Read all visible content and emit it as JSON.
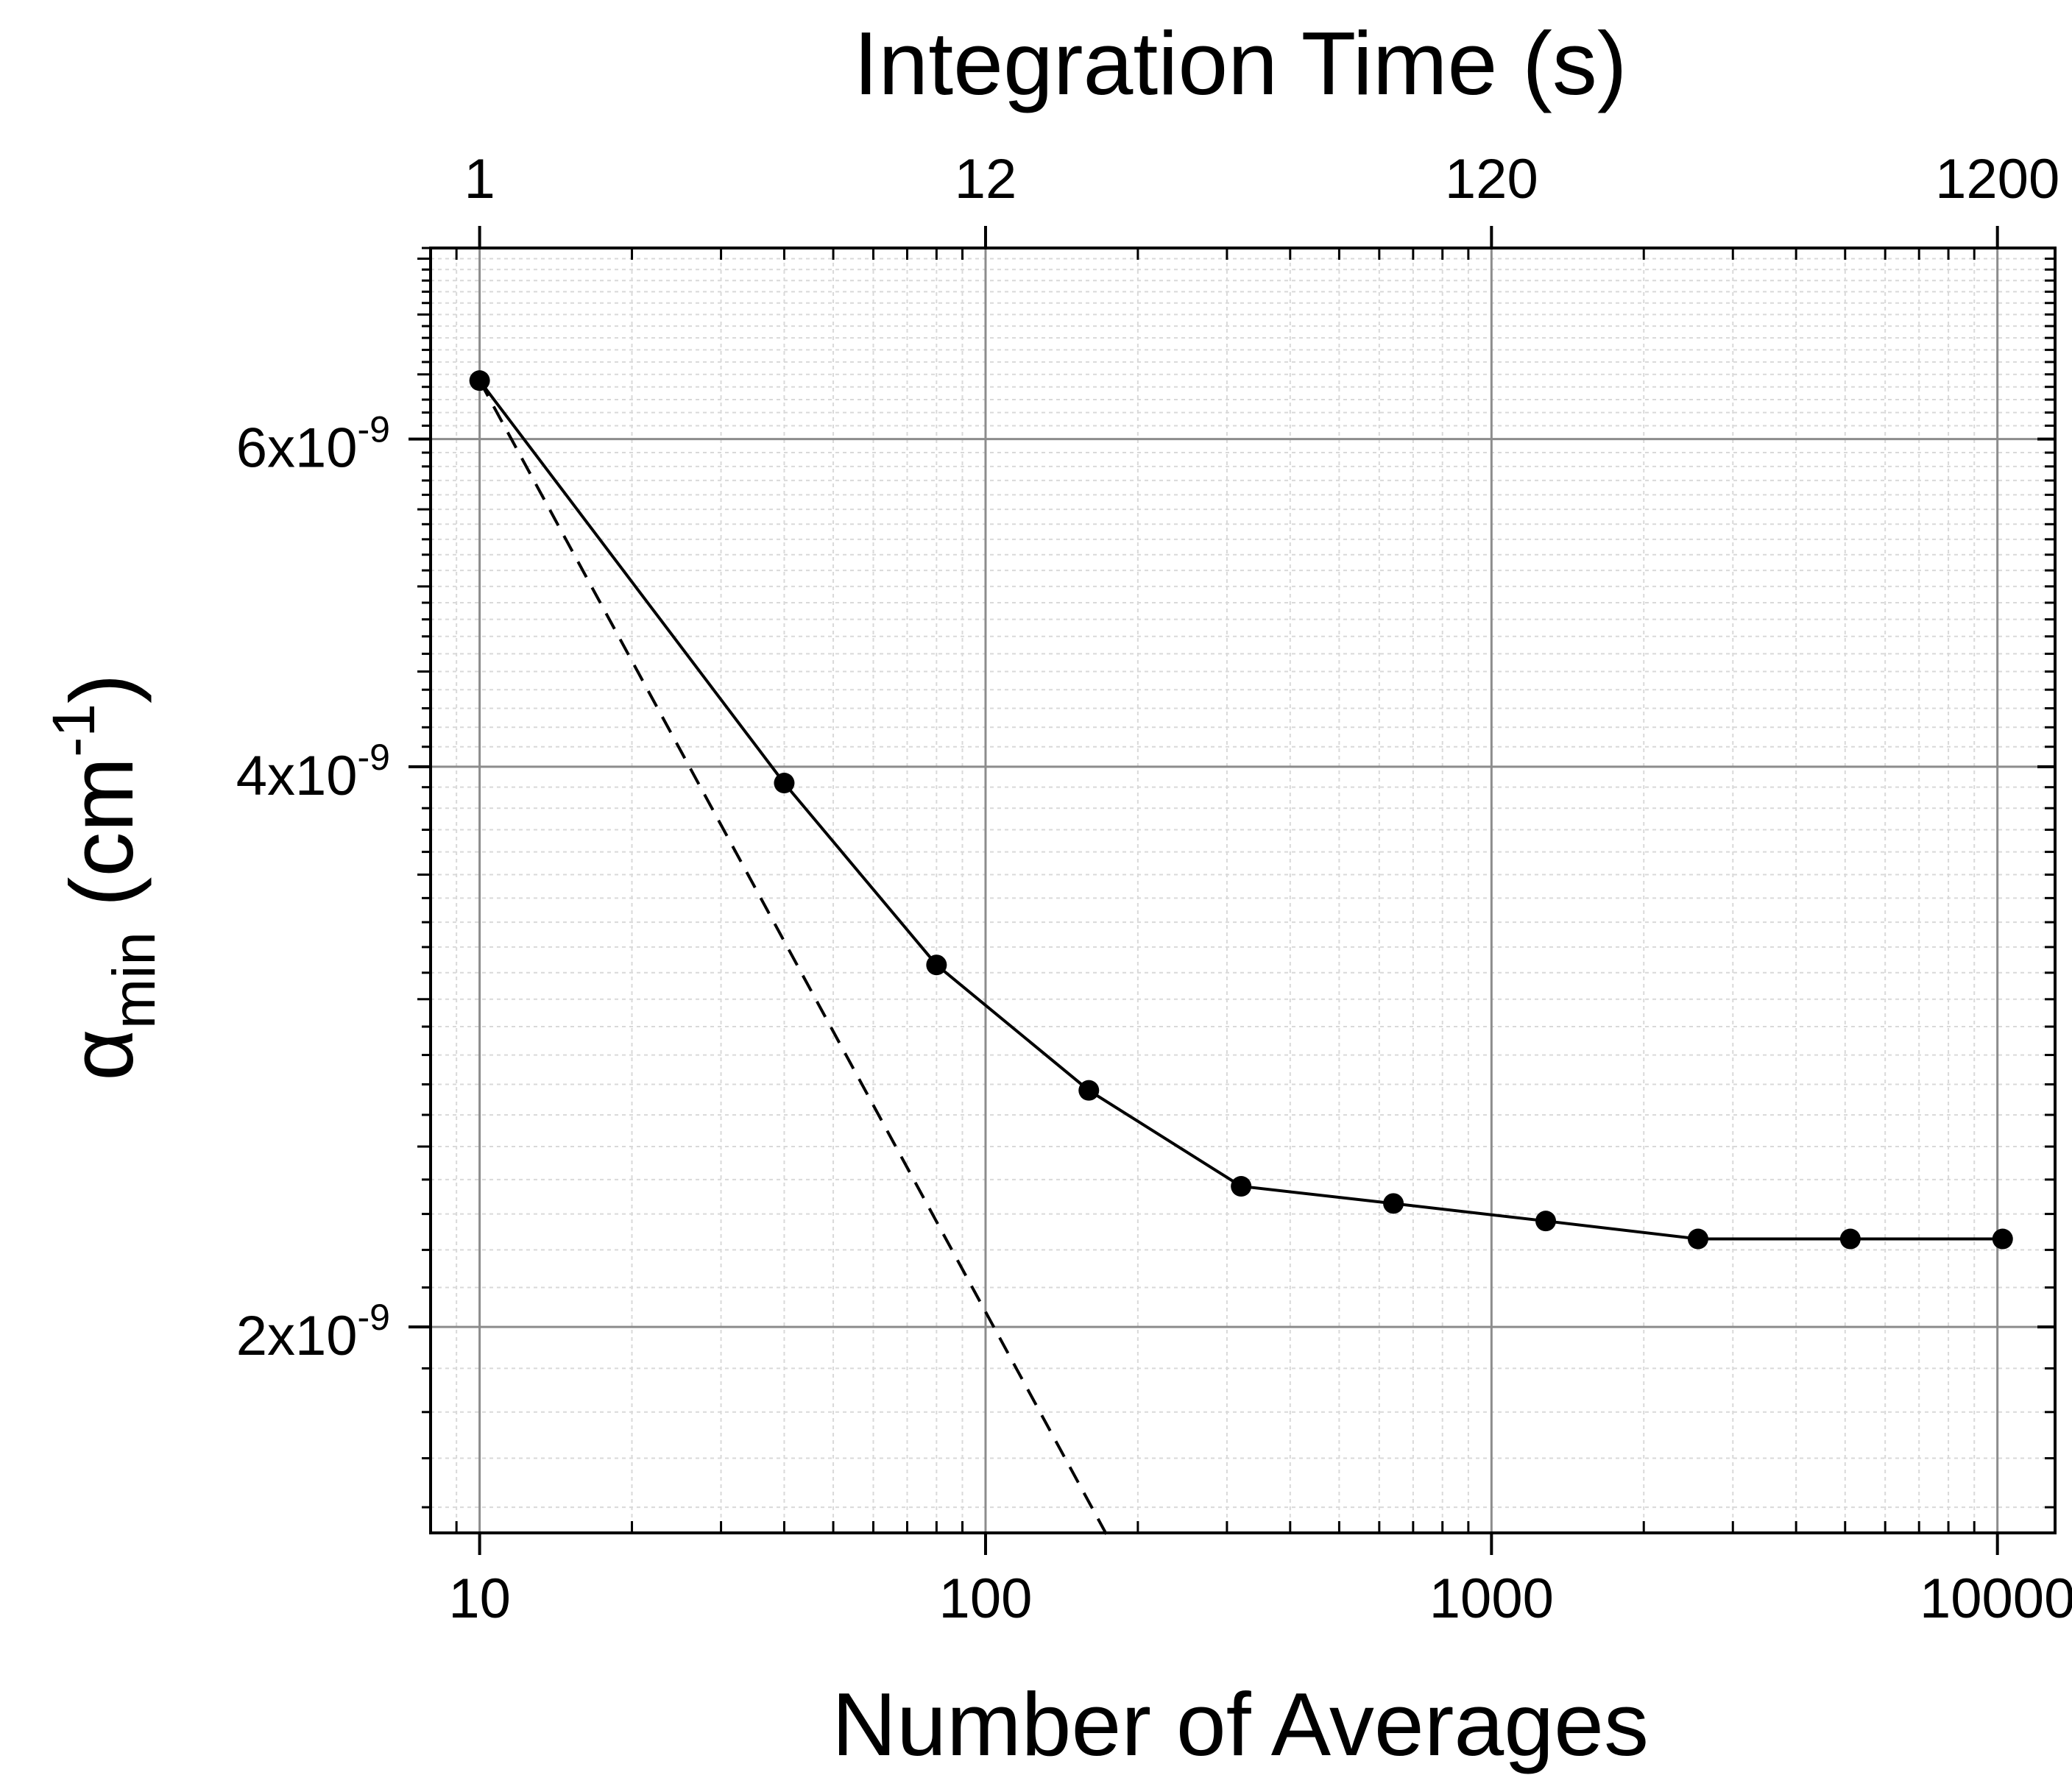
{
  "chart_data": {
    "type": "line",
    "title": "",
    "xlabel": "Number of Averages",
    "x2label": "Integration Time (s)",
    "ylabel": {
      "symbol": "α",
      "subscript": "min",
      "unit_open": " (cm",
      "unit_sup": "-1",
      "unit_close": ")"
    },
    "x_scale": "log",
    "y_scale": "log",
    "xlim": [
      8,
      13000
    ],
    "ylim": [
      1.55e-09,
      7.6e-09
    ],
    "x_ticks": [
      {
        "value": 10,
        "label": "10"
      },
      {
        "value": 100,
        "label": "100"
      },
      {
        "value": 1000,
        "label": "1000"
      },
      {
        "value": 10000,
        "label": "10000"
      }
    ],
    "x2_ticks": [
      {
        "value": 10,
        "label": "1"
      },
      {
        "value": 100,
        "label": "12"
      },
      {
        "value": 1000,
        "label": "120"
      },
      {
        "value": 10000,
        "label": "1200"
      }
    ],
    "y_ticks": [
      {
        "value": 2e-09,
        "base": "2x10",
        "exp": "-9"
      },
      {
        "value": 4e-09,
        "base": "4x10",
        "exp": "-9"
      },
      {
        "value": 6e-09,
        "base": "6x10",
        "exp": "-9"
      }
    ],
    "grid": true,
    "series": [
      {
        "style": "solid-with-markers",
        "x": [
          10,
          40,
          80,
          160,
          320,
          640,
          1280,
          2560,
          5120,
          10240
        ],
        "y": [
          6.45e-09,
          3.92e-09,
          3.13e-09,
          2.68e-09,
          2.38e-09,
          2.33e-09,
          2.28e-09,
          2.23e-09,
          2.23e-09,
          2.23e-09
        ]
      },
      {
        "style": "dashed",
        "x": [
          10,
          175
        ],
        "y": [
          6.45e-09,
          1.54e-09
        ]
      }
    ],
    "colors": {
      "line": "#000000",
      "major_grid": "#8c8c8c",
      "minor_grid": "#d9d9d9",
      "axis": "#000000"
    }
  }
}
